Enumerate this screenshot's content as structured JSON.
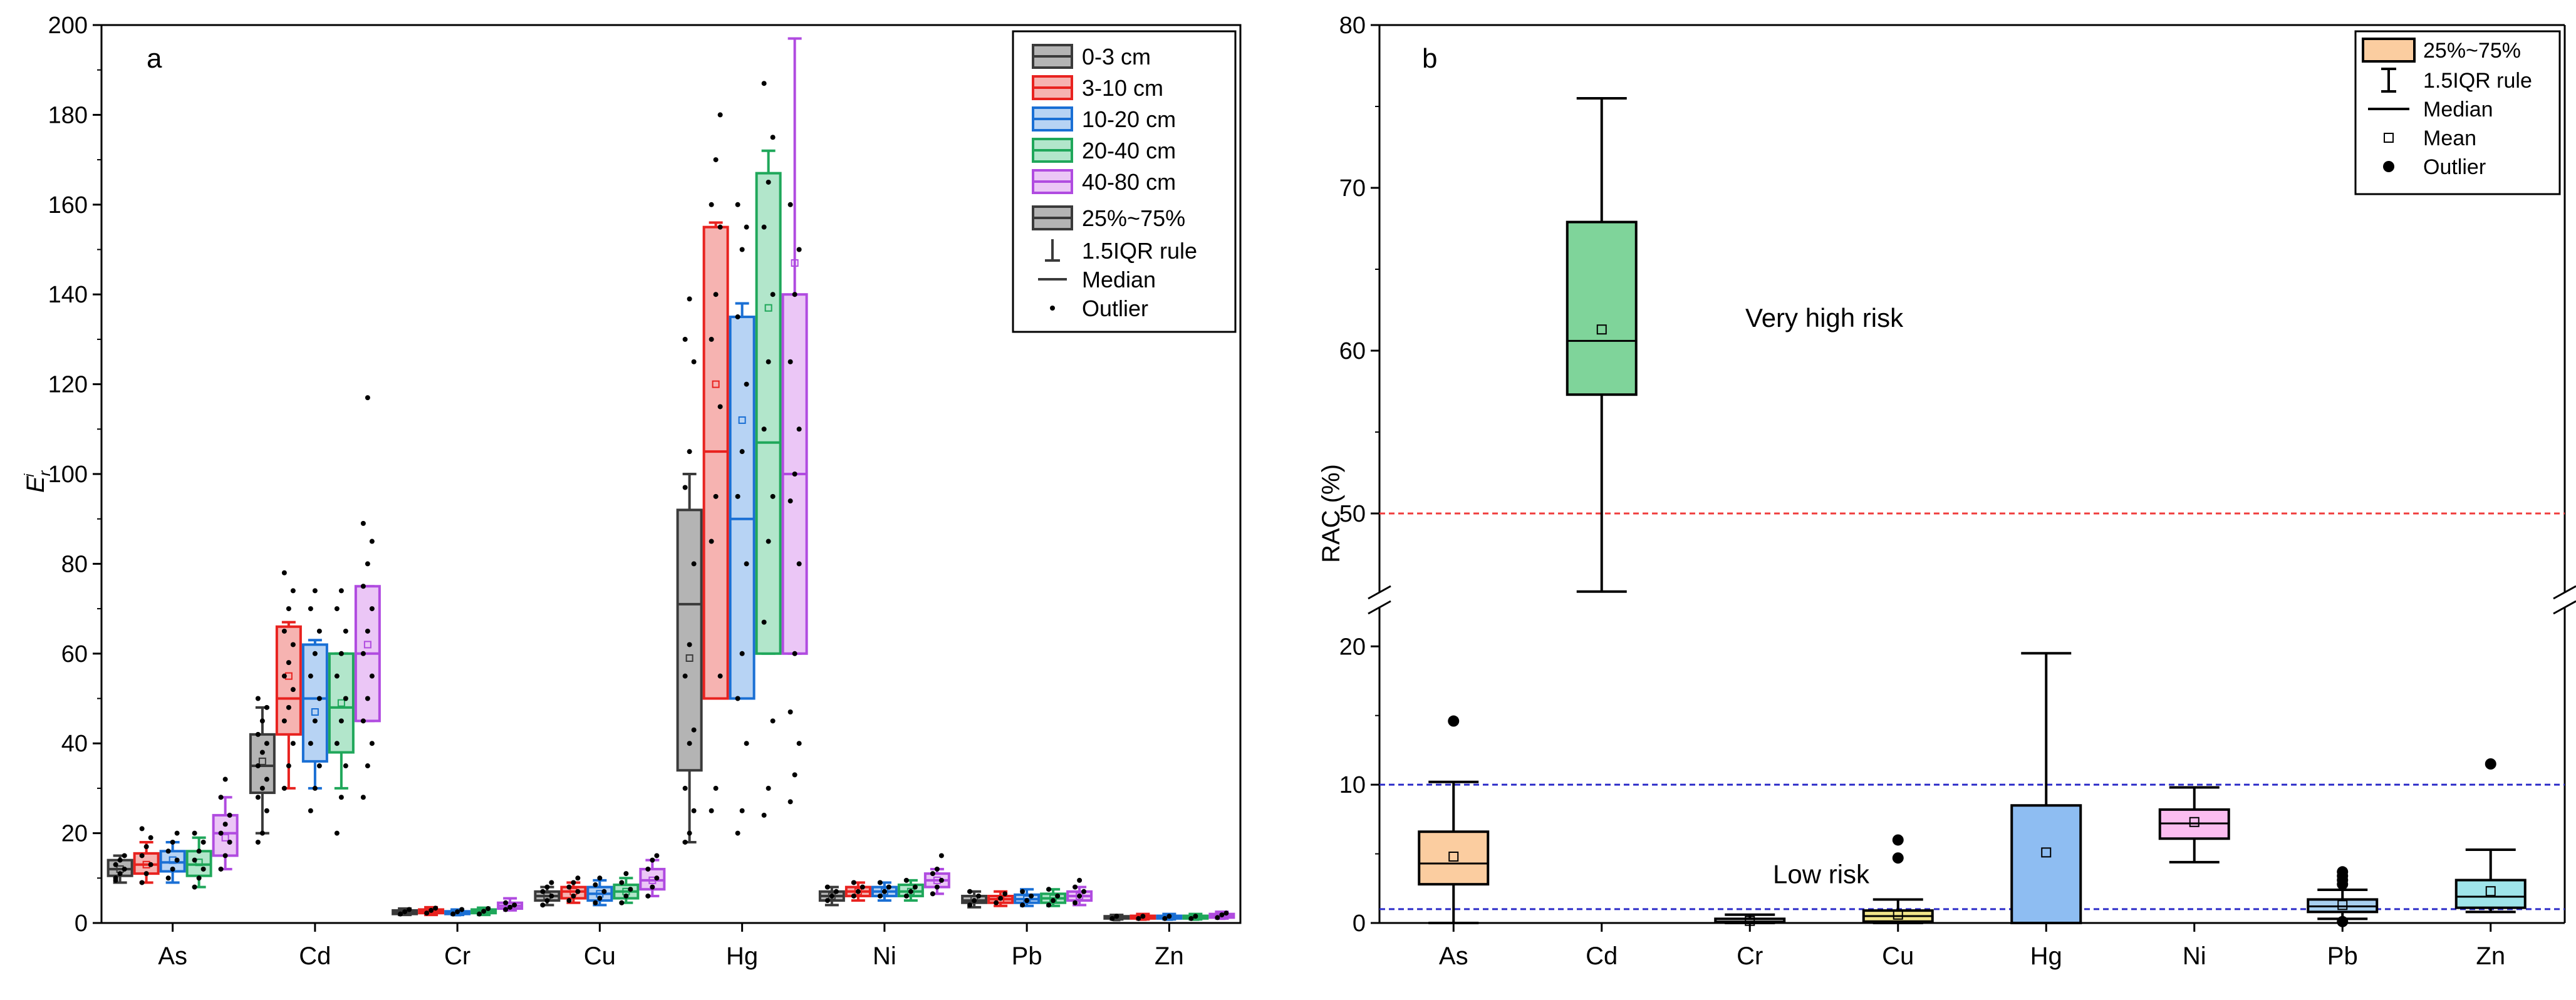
{
  "chart_data": [
    {
      "type": "box",
      "panel_label": "a",
      "title": "",
      "xlabel": "",
      "ylabel_main": "E",
      "ylabel_sub": "r",
      "ylabel_sup": "i",
      "ylim": [
        0,
        200
      ],
      "yticks": [
        0,
        20,
        40,
        60,
        80,
        100,
        120,
        140,
        160,
        180,
        200
      ],
      "categories": [
        "As",
        "Cd",
        "Cr",
        "Cu",
        "Hg",
        "Ni",
        "Pb",
        "Zn"
      ],
      "series": [
        {
          "name": "0-3 cm",
          "edge": "#3a3a3a",
          "fill": "#b4b4b4",
          "boxes": [
            {
              "q1": 10.5,
              "med": 12,
              "q3": 14,
              "mean": 12,
              "wlo": 9,
              "whi": 15
            },
            {
              "q1": 29,
              "med": 35,
              "q3": 42,
              "mean": 36,
              "wlo": 20,
              "whi": 48
            },
            {
              "q1": 2,
              "med": 2.3,
              "q3": 2.8,
              "mean": 2.4,
              "wlo": 1.8,
              "whi": 3.2
            },
            {
              "q1": 5,
              "med": 6,
              "q3": 7,
              "mean": 6,
              "wlo": 4,
              "whi": 8
            },
            {
              "q1": 34,
              "med": 71,
              "q3": 92,
              "mean": 59,
              "wlo": 18,
              "whi": 100
            },
            {
              "q1": 5,
              "med": 6,
              "q3": 7,
              "mean": 6,
              "wlo": 4,
              "whi": 8
            },
            {
              "q1": 4.5,
              "med": 5,
              "q3": 6,
              "mean": 5.2,
              "wlo": 3.5,
              "whi": 7
            },
            {
              "q1": 1,
              "med": 1.2,
              "q3": 1.5,
              "mean": 1.2,
              "wlo": 0.8,
              "whi": 1.8
            }
          ]
        },
        {
          "name": "3-10 cm",
          "edge": "#e8221f",
          "fill": "#f6b3b1",
          "boxes": [
            {
              "q1": 11,
              "med": 13,
              "q3": 15.5,
              "mean": 13,
              "wlo": 9,
              "whi": 18
            },
            {
              "q1": 42,
              "med": 50,
              "q3": 66,
              "mean": 55,
              "wlo": 30,
              "whi": 67
            },
            {
              "q1": 2.2,
              "med": 2.6,
              "q3": 3,
              "mean": 2.6,
              "wlo": 1.8,
              "whi": 3.5
            },
            {
              "q1": 5.5,
              "med": 7,
              "q3": 8,
              "mean": 7,
              "wlo": 4.5,
              "whi": 9
            },
            {
              "q1": 50,
              "med": 105,
              "q3": 155,
              "mean": 120,
              "wlo": 50,
              "whi": 156
            },
            {
              "q1": 6,
              "med": 7,
              "q3": 8,
              "mean": 7,
              "wlo": 5,
              "whi": 9
            },
            {
              "q1": 4.5,
              "med": 5.3,
              "q3": 6,
              "mean": 5.3,
              "wlo": 3.8,
              "whi": 7
            },
            {
              "q1": 1,
              "med": 1.3,
              "q3": 1.6,
              "mean": 1.3,
              "wlo": 0.8,
              "whi": 2
            }
          ]
        },
        {
          "name": "10-20 cm",
          "edge": "#1a6fd4",
          "fill": "#b7d3f4",
          "boxes": [
            {
              "q1": 11.5,
              "med": 13.5,
              "q3": 16,
              "mean": 14,
              "wlo": 9,
              "whi": 18
            },
            {
              "q1": 36,
              "med": 50,
              "q3": 62,
              "mean": 47,
              "wlo": 30,
              "whi": 63
            },
            {
              "q1": 2,
              "med": 2.2,
              "q3": 2.6,
              "mean": 2.3,
              "wlo": 1.8,
              "whi": 3
            },
            {
              "q1": 5,
              "med": 6.5,
              "q3": 8,
              "mean": 6.5,
              "wlo": 4,
              "whi": 9.5
            },
            {
              "q1": 50,
              "med": 90,
              "q3": 135,
              "mean": 112,
              "wlo": 50,
              "whi": 138
            },
            {
              "q1": 6,
              "med": 7,
              "q3": 8,
              "mean": 7,
              "wlo": 5,
              "whi": 9
            },
            {
              "q1": 4.5,
              "med": 5.3,
              "q3": 6.3,
              "mean": 5.3,
              "wlo": 3.8,
              "whi": 7.5
            },
            {
              "q1": 1,
              "med": 1.3,
              "q3": 1.6,
              "mean": 1.3,
              "wlo": 0.8,
              "whi": 2
            }
          ]
        },
        {
          "name": "20-40 cm",
          "edge": "#1fa75a",
          "fill": "#b2e6cb",
          "boxes": [
            {
              "q1": 10.5,
              "med": 13,
              "q3": 16,
              "mean": 13.5,
              "wlo": 8,
              "whi": 19
            },
            {
              "q1": 38,
              "med": 48,
              "q3": 60,
              "mean": 49,
              "wlo": 30,
              "whi": 60
            },
            {
              "q1": 2.2,
              "med": 2.6,
              "q3": 3,
              "mean": 2.6,
              "wlo": 1.8,
              "whi": 3.4
            },
            {
              "q1": 5.5,
              "med": 7,
              "q3": 8.5,
              "mean": 7,
              "wlo": 4.5,
              "whi": 10
            },
            {
              "q1": 60,
              "med": 107,
              "q3": 167,
              "mean": 137,
              "wlo": 60,
              "whi": 172
            },
            {
              "q1": 6,
              "med": 7,
              "q3": 8.5,
              "mean": 7,
              "wlo": 5,
              "whi": 9.5
            },
            {
              "q1": 4.5,
              "med": 5.5,
              "q3": 6.5,
              "mean": 5.5,
              "wlo": 3.8,
              "whi": 7.5
            },
            {
              "q1": 1,
              "med": 1.3,
              "q3": 1.6,
              "mean": 1.3,
              "wlo": 0.8,
              "whi": 2
            }
          ]
        },
        {
          "name": "40-80 cm",
          "edge": "#b04be0",
          "fill": "#ebc6f6",
          "boxes": [
            {
              "q1": 15,
              "med": 20,
              "q3": 24,
              "mean": 19,
              "wlo": 12,
              "whi": 28
            },
            {
              "q1": 45,
              "med": 60,
              "q3": 75,
              "mean": 62,
              "wlo": 45,
              "whi": 75
            },
            {
              "q1": 3.2,
              "med": 3.8,
              "q3": 4.5,
              "mean": 3.8,
              "wlo": 2.8,
              "whi": 5.5
            },
            {
              "q1": 7.5,
              "med": 9.5,
              "q3": 12,
              "mean": 9.5,
              "wlo": 6,
              "whi": 14
            },
            {
              "q1": 60,
              "med": 100,
              "q3": 140,
              "mean": 147,
              "wlo": 60,
              "whi": 197
            },
            {
              "q1": 8,
              "med": 9.5,
              "q3": 11,
              "mean": 9.5,
              "wlo": 6.5,
              "whi": 12
            },
            {
              "q1": 5,
              "med": 6,
              "q3": 7,
              "mean": 6,
              "wlo": 4,
              "whi": 8
            },
            {
              "q1": 1.2,
              "med": 1.5,
              "q3": 2,
              "mean": 1.5,
              "wlo": 1,
              "whi": 2.5
            }
          ]
        }
      ],
      "points": [
        [
          [
            10,
            11,
            12,
            13,
            14,
            15,
            9.5
          ],
          [
            18,
            20,
            25,
            28,
            30,
            32,
            35,
            38,
            40,
            42,
            45,
            48,
            50
          ],
          [
            2,
            2.5,
            3
          ],
          [
            4,
            5,
            6,
            7,
            8,
            9
          ],
          [
            18,
            20,
            25,
            30,
            40,
            43,
            55,
            62,
            80,
            97,
            105,
            125,
            130,
            139
          ],
          [
            5,
            6,
            7,
            8
          ],
          [
            4,
            5,
            6,
            7
          ],
          [
            1,
            1.5
          ]
        ],
        [
          [
            9,
            11,
            13,
            15,
            17,
            19,
            21
          ],
          [
            30,
            35,
            40,
            45,
            48,
            52,
            55,
            58,
            62,
            65,
            70,
            74,
            78
          ],
          [
            2.2,
            2.8,
            3.3
          ],
          [
            5,
            6,
            7,
            8,
            9,
            10
          ],
          [
            25,
            30,
            55,
            85,
            95,
            115,
            130,
            140,
            155,
            160,
            170,
            180
          ],
          [
            6,
            7,
            8,
            9
          ],
          [
            4.5,
            5.5,
            6.5
          ],
          [
            1,
            1.5
          ]
        ],
        [
          [
            10,
            12,
            14,
            16,
            18,
            20
          ],
          [
            25,
            30,
            35,
            40,
            45,
            50,
            55,
            60,
            65,
            70,
            74
          ],
          [
            2,
            2.5,
            3
          ],
          [
            4.5,
            5.5,
            7,
            8.5,
            10
          ],
          [
            20,
            25,
            40,
            50,
            60,
            80,
            95,
            105,
            120,
            135,
            150,
            155,
            160
          ],
          [
            6,
            7,
            8,
            9
          ],
          [
            4,
            5,
            6,
            7
          ],
          [
            1,
            1.5
          ]
        ],
        [
          [
            8,
            10,
            12,
            14,
            16,
            18,
            20
          ],
          [
            20,
            28,
            35,
            40,
            45,
            50,
            55,
            60,
            65,
            70,
            74
          ],
          [
            2,
            2.6,
            3.2
          ],
          [
            4.5,
            6,
            7.5,
            9,
            11
          ],
          [
            24,
            30,
            45,
            67,
            85,
            95,
            110,
            125,
            140,
            155,
            165,
            175,
            187
          ],
          [
            6,
            7,
            8,
            9.5
          ],
          [
            4,
            5,
            6,
            7.5
          ],
          [
            1,
            1.5
          ]
        ],
        [
          [
            12,
            15,
            18,
            20,
            22,
            24,
            28,
            32
          ],
          [
            28,
            35,
            40,
            45,
            50,
            55,
            60,
            65,
            70,
            75,
            80,
            85,
            89,
            117
          ],
          [
            3,
            3.5,
            4,
            4.5
          ],
          [
            6,
            8,
            10,
            12,
            14,
            15
          ],
          [
            27,
            33,
            40,
            47,
            60,
            80,
            94,
            100,
            110,
            125,
            140,
            150,
            160
          ],
          [
            6.5,
            8,
            9.5,
            11,
            12,
            15
          ],
          [
            4.5,
            6,
            7,
            8,
            9.5
          ],
          [
            1.2,
            1.8,
            2.2
          ]
        ]
      ],
      "legend": {
        "placement": "top-right",
        "summary": [
          {
            "label": "25%~75%"
          },
          {
            "label": "1.5IQR rule"
          },
          {
            "label": "Median"
          },
          {
            "label": "Outlier"
          }
        ]
      }
    },
    {
      "type": "box",
      "panel_label": "b",
      "title": "",
      "xlabel": "",
      "ylabel": "RAC (%)",
      "y_axis": "broken",
      "ylim_lower": [
        0,
        23
      ],
      "yticks_lower": [
        0,
        10,
        20
      ],
      "ylim_upper": [
        45,
        80
      ],
      "yticks_upper": [
        50,
        60,
        70,
        80
      ],
      "categories": [
        "As",
        "Cd",
        "Cr",
        "Cu",
        "Hg",
        "Ni",
        "Pb",
        "Zn"
      ],
      "boxes": [
        {
          "cat": "As",
          "fill": "#fbcda0",
          "q1": 2.8,
          "med": 4.3,
          "q3": 6.6,
          "mean": 4.8,
          "wlo": 0,
          "whi": 10.2,
          "outliers": [
            14.6
          ]
        },
        {
          "cat": "Cd",
          "fill": "#7fd49a",
          "q1": 57.3,
          "med": 60.6,
          "q3": 67.9,
          "mean": 61.3,
          "wlo": 45.2,
          "whi": 75.5,
          "outliers": []
        },
        {
          "cat": "Cr",
          "fill": "#ffffff",
          "q1": 0.05,
          "med": 0.1,
          "q3": 0.3,
          "mean": 0.15,
          "wlo": 0,
          "whi": 0.6,
          "outliers": []
        },
        {
          "cat": "Cu",
          "fill": "#f2e68a",
          "q1": 0.1,
          "med": 0.5,
          "q3": 0.9,
          "mean": 0.6,
          "wlo": 0,
          "whi": 1.7,
          "outliers": [
            4.7,
            6.0
          ]
        },
        {
          "cat": "Hg",
          "fill": "#8ebdf2",
          "q1": 0,
          "med": 0,
          "q3": 8.5,
          "mean": 5.1,
          "wlo": 0,
          "whi": 19.5,
          "outliers": []
        },
        {
          "cat": "Ni",
          "fill": "#fbbdf0",
          "q1": 6.1,
          "med": 7.2,
          "q3": 8.2,
          "mean": 7.3,
          "wlo": 4.4,
          "whi": 9.8,
          "outliers": []
        },
        {
          "cat": "Pb",
          "fill": "#a8d0f0",
          "q1": 0.8,
          "med": 1.2,
          "q3": 1.7,
          "mean": 1.3,
          "wlo": 0.3,
          "whi": 2.4,
          "outliers": [
            2.8,
            3.1,
            3.4,
            3.7,
            0.1
          ]
        },
        {
          "cat": "Zn",
          "fill": "#9fe4ea",
          "q1": 1.1,
          "med": 1.9,
          "q3": 3.1,
          "mean": 2.3,
          "wlo": 0.8,
          "whi": 5.3,
          "outliers": [
            11.5
          ]
        }
      ],
      "reference_lines": [
        {
          "value": 50,
          "color": "#f03c3c",
          "segment": "upper"
        },
        {
          "value": 10,
          "color": "#2c2cc8",
          "segment": "lower"
        },
        {
          "value": 1,
          "color": "#2c2cc8",
          "segment": "lower"
        }
      ],
      "annotations": [
        {
          "text": "Very high risk",
          "y": 62
        },
        {
          "text": "Low risk",
          "y": 3.5
        }
      ],
      "legend": {
        "placement": "top-right",
        "entries": [
          {
            "label": "25%~75%"
          },
          {
            "label": "1.5IQR rule"
          },
          {
            "label": "Median"
          },
          {
            "label": "Mean"
          },
          {
            "label": "Outlier"
          }
        ]
      }
    }
  ]
}
